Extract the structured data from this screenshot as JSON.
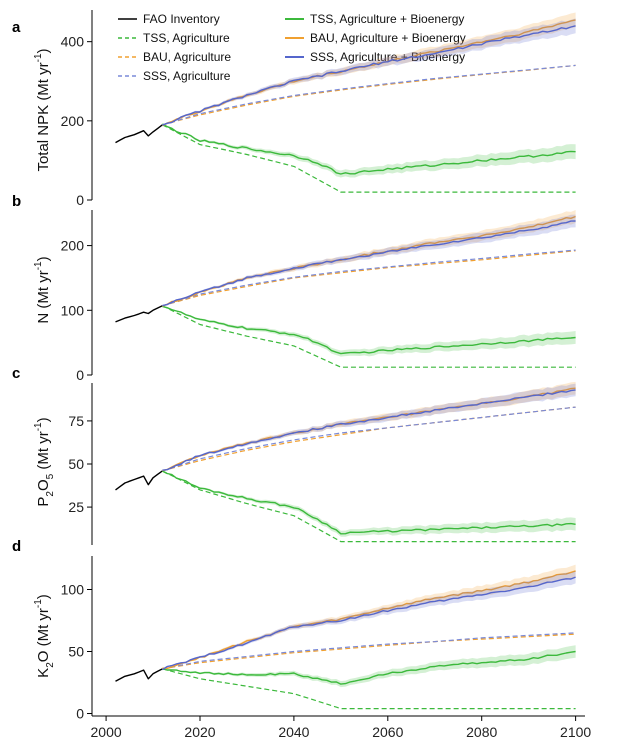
{
  "chart_data": {
    "type": "line",
    "x_axis": {
      "ticks": [
        2000,
        2020,
        2040,
        2060,
        2080,
        2100
      ],
      "xlim": [
        1997,
        2102
      ]
    },
    "legend": {
      "placement": "top",
      "entries": [
        {
          "label": "FAO Inventory",
          "color": "#000000",
          "dash": "solid"
        },
        {
          "label": "TSS, Agriculture",
          "color": "#3cb93c",
          "dash": "dashed"
        },
        {
          "label": "BAU, Agriculture",
          "color": "#f0a030",
          "dash": "dashed"
        },
        {
          "label": "SSS, Agriculture",
          "color": "#7a8ad8",
          "dash": "dashed"
        },
        {
          "label": "TSS, Agriculture + Bioenergy",
          "color": "#3cb93c",
          "dash": "solid"
        },
        {
          "label": "BAU, Agriculture + Bioenergy",
          "color": "#f0a030",
          "dash": "solid"
        },
        {
          "label": "SSS, Agriculture + Bioenergy",
          "color": "#5566cc",
          "dash": "solid"
        }
      ]
    },
    "panels": [
      {
        "letter": "a",
        "ylabel_main": "Total NPK (Mt yr",
        "ylabel_sup": "-1",
        "ylabel_end": ")",
        "ylim": [
          0,
          480
        ],
        "yticks": [
          0,
          200,
          400
        ],
        "series": [
          {
            "key": "fao",
            "x": [
              2002,
              2004,
              2006,
              2008,
              2009,
              2010,
              2012
            ],
            "y": [
              145,
              158,
              165,
              175,
              162,
              172,
              190
            ]
          },
          {
            "key": "tss_ag",
            "x": [
              2012,
              2020,
              2030,
              2040,
              2050,
              2100
            ],
            "y": [
              190,
              140,
              115,
              85,
              20,
              20
            ]
          },
          {
            "key": "bau_ag",
            "x": [
              2012,
              2020,
              2030,
              2040,
              2050,
              2060,
              2070,
              2080,
              2090,
              2100
            ],
            "y": [
              190,
              215,
              240,
              262,
              278,
              292,
              305,
              317,
              328,
              340
            ]
          },
          {
            "key": "sss_ag",
            "x": [
              2012,
              2020,
              2030,
              2040,
              2050,
              2060,
              2070,
              2080,
              2090,
              2100
            ],
            "y": [
              190,
              218,
              243,
              264,
              280,
              294,
              307,
              318,
              329,
              340
            ]
          },
          {
            "key": "tss_bio",
            "x": [
              2012,
              2020,
              2030,
              2040,
              2045,
              2050,
              2060,
              2070,
              2080,
              2090,
              2100
            ],
            "y": [
              190,
              150,
              130,
              112,
              95,
              65,
              78,
              88,
              100,
              110,
              122
            ]
          },
          {
            "key": "bau_bio",
            "x": [
              2012,
              2020,
              2030,
              2040,
              2050,
              2060,
              2070,
              2080,
              2090,
              2100
            ],
            "y": [
              190,
              225,
              265,
              300,
              325,
              350,
              375,
              400,
              425,
              455
            ]
          },
          {
            "key": "sss_bio",
            "x": [
              2012,
              2020,
              2030,
              2040,
              2050,
              2060,
              2070,
              2080,
              2090,
              2100
            ],
            "y": [
              190,
              225,
              265,
              300,
              325,
              350,
              370,
              395,
              418,
              440
            ]
          }
        ]
      },
      {
        "letter": "b",
        "ylabel_main": "N (Mt yr",
        "ylabel_sup": "-1",
        "ylabel_end": ")",
        "ylim": [
          0,
          255
        ],
        "yticks": [
          0,
          100,
          200
        ],
        "series": [
          {
            "key": "fao",
            "x": [
              2002,
              2004,
              2006,
              2008,
              2009,
              2010,
              2012
            ],
            "y": [
              82,
              88,
              92,
              97,
              95,
              100,
              107
            ]
          },
          {
            "key": "tss_ag",
            "x": [
              2012,
              2020,
              2030,
              2040,
              2050,
              2100
            ],
            "y": [
              107,
              78,
              60,
              45,
              12,
              12
            ]
          },
          {
            "key": "bau_ag",
            "x": [
              2012,
              2020,
              2030,
              2040,
              2050,
              2060,
              2070,
              2080,
              2090,
              2100
            ],
            "y": [
              107,
              123,
              137,
              150,
              158,
              166,
              172,
              178,
              185,
              192
            ]
          },
          {
            "key": "sss_ag",
            "x": [
              2012,
              2020,
              2030,
              2040,
              2050,
              2060,
              2070,
              2080,
              2090,
              2100
            ],
            "y": [
              107,
              125,
              139,
              151,
              160,
              167,
              174,
              180,
              187,
              193
            ]
          },
          {
            "key": "tss_bio",
            "x": [
              2012,
              2020,
              2030,
              2040,
              2045,
              2050,
              2060,
              2070,
              2080,
              2090,
              2100
            ],
            "y": [
              107,
              85,
              72,
              63,
              50,
              32,
              38,
              43,
              48,
              53,
              58
            ]
          },
          {
            "key": "bau_bio",
            "x": [
              2012,
              2020,
              2030,
              2040,
              2050,
              2060,
              2070,
              2080,
              2090,
              2100
            ],
            "y": [
              107,
              128,
              150,
              165,
              178,
              192,
              205,
              215,
              228,
              245
            ]
          },
          {
            "key": "sss_bio",
            "x": [
              2012,
              2020,
              2030,
              2040,
              2050,
              2060,
              2070,
              2080,
              2090,
              2100
            ],
            "y": [
              107,
              128,
              150,
              165,
              178,
              190,
              202,
              212,
              224,
              238
            ]
          }
        ]
      },
      {
        "letter": "c",
        "ylabel_main": "P",
        "ylabel_sub1": "2",
        "ylabel_mid": "O",
        "ylabel_sub2": "5",
        "ylabel_main2": " (Mt yr",
        "ylabel_sup": "-1",
        "ylabel_end": ")",
        "ylim": [
          3,
          97
        ],
        "yticks": [
          25,
          50,
          75
        ],
        "series": [
          {
            "key": "fao",
            "x": [
              2002,
              2004,
              2006,
              2008,
              2009,
              2010,
              2012
            ],
            "y": [
              35,
              39,
              41,
              43,
              38,
              42,
              46
            ]
          },
          {
            "key": "tss_ag",
            "x": [
              2012,
              2020,
              2030,
              2040,
              2050,
              2100
            ],
            "y": [
              46,
              35,
              27,
              20,
              5,
              5
            ]
          },
          {
            "key": "bau_ag",
            "x": [
              2012,
              2020,
              2030,
              2040,
              2050,
              2060,
              2070,
              2080,
              2090,
              2100
            ],
            "y": [
              46,
              52,
              58,
              63,
              67,
              71,
              74,
              77,
              80,
              83
            ]
          },
          {
            "key": "sss_ag",
            "x": [
              2012,
              2020,
              2030,
              2040,
              2050,
              2060,
              2070,
              2080,
              2090,
              2100
            ],
            "y": [
              46,
              53,
              59,
              64,
              68,
              71,
              74,
              77,
              80,
              83
            ]
          },
          {
            "key": "tss_bio",
            "x": [
              2012,
              2020,
              2030,
              2040,
              2045,
              2050,
              2060,
              2070,
              2080,
              2090,
              2100
            ],
            "y": [
              46,
              36,
              30,
              25,
              18,
              10,
              11,
              12,
              13,
              14,
              15
            ]
          },
          {
            "key": "bau_bio",
            "x": [
              2012,
              2020,
              2030,
              2040,
              2050,
              2060,
              2070,
              2080,
              2090,
              2100
            ],
            "y": [
              46,
              55,
              62,
              68,
              73,
              77,
              81,
              85,
              89,
              94
            ]
          },
          {
            "key": "sss_bio",
            "x": [
              2012,
              2020,
              2030,
              2040,
              2050,
              2060,
              2070,
              2080,
              2090,
              2100
            ],
            "y": [
              46,
              55,
              62,
              68,
              73,
              77,
              81,
              85,
              89,
              93
            ]
          }
        ]
      },
      {
        "letter": "d",
        "ylabel_main": "K",
        "ylabel_sub1": "2",
        "ylabel_main2": "O (Mt yr",
        "ylabel_sup": "-1",
        "ylabel_end": ")",
        "ylim": [
          -2,
          127
        ],
        "yticks": [
          0,
          50,
          100
        ],
        "series": [
          {
            "key": "fao",
            "x": [
              2002,
              2004,
              2006,
              2008,
              2009,
              2010,
              2012
            ],
            "y": [
              26,
              30,
              32,
              35,
              28,
              32,
              36
            ]
          },
          {
            "key": "tss_ag",
            "x": [
              2012,
              2020,
              2030,
              2040,
              2050,
              2100
            ],
            "y": [
              36,
              28,
              22,
              16,
              4,
              4
            ]
          },
          {
            "key": "bau_ag",
            "x": [
              2012,
              2020,
              2030,
              2040,
              2050,
              2060,
              2070,
              2080,
              2090,
              2100
            ],
            "y": [
              36,
              41,
              45,
              49,
              52,
              55,
              58,
              60,
              62,
              64
            ]
          },
          {
            "key": "sss_ag",
            "x": [
              2012,
              2020,
              2030,
              2040,
              2050,
              2060,
              2070,
              2080,
              2090,
              2100
            ],
            "y": [
              36,
              42,
              46,
              50,
              53,
              56,
              58,
              61,
              63,
              65
            ]
          },
          {
            "key": "tss_bio",
            "x": [
              2012,
              2020,
              2030,
              2040,
              2045,
              2050,
              2060,
              2070,
              2080,
              2090,
              2100
            ],
            "y": [
              36,
              33,
              31,
              32,
              28,
              24,
              32,
              38,
              41,
              44,
              50
            ]
          },
          {
            "key": "bau_bio",
            "x": [
              2012,
              2020,
              2030,
              2040,
              2050,
              2060,
              2070,
              2080,
              2090,
              2100
            ],
            "y": [
              36,
              45,
              58,
              70,
              76,
              85,
              93,
              99,
              106,
              115
            ]
          },
          {
            "key": "sss_bio",
            "x": [
              2012,
              2020,
              2030,
              2040,
              2050,
              2060,
              2070,
              2080,
              2090,
              2100
            ],
            "y": [
              36,
              45,
              57,
              70,
              75,
              83,
              90,
              96,
              102,
              110
            ]
          }
        ]
      }
    ],
    "series_styles": {
      "fao": {
        "color": "#000000",
        "dash": "solid",
        "band": false
      },
      "tss_ag": {
        "color": "#3cb93c",
        "dash": "dashed",
        "band": false
      },
      "bau_ag": {
        "color": "#f0a030",
        "dash": "dashed",
        "band": false
      },
      "sss_ag": {
        "color": "#7a8ad8",
        "dash": "dashed",
        "band": false
      },
      "tss_bio": {
        "color": "#3cb93c",
        "dash": "solid",
        "band": true
      },
      "bau_bio": {
        "color": "#f0a030",
        "dash": "solid",
        "band": true
      },
      "sss_bio": {
        "color": "#5566cc",
        "dash": "solid",
        "band": true
      }
    }
  }
}
